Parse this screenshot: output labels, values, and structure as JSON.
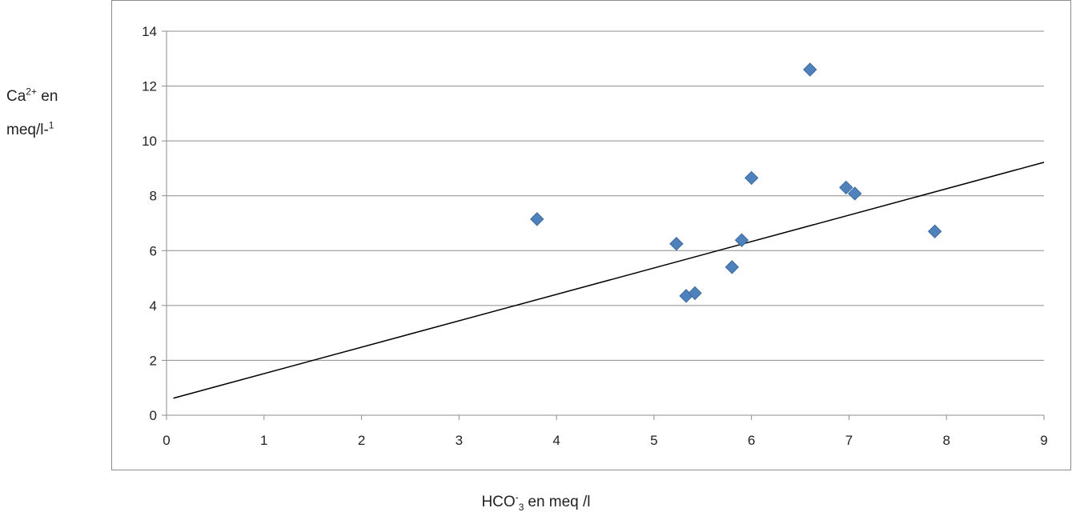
{
  "chart_data": {
    "type": "scatter",
    "xlabel": {
      "main": "HCO",
      "sup": "-",
      "sub": "3",
      "rest": "en meq /l"
    },
    "ylabel": {
      "line1_main": "Ca",
      "line1_sup": "2+",
      "line1_rest": " en",
      "line2_main": "meq/l-",
      "line2_sup": "1"
    },
    "xlim": [
      0,
      9
    ],
    "ylim": [
      0,
      14
    ],
    "xticks": [
      "0",
      "1",
      "2",
      "3",
      "4",
      "5",
      "6",
      "7",
      "8",
      "9"
    ],
    "yticks": [
      "0",
      "2",
      "4",
      "6",
      "8",
      "10",
      "12",
      "14"
    ],
    "grid": {
      "horizontal": true,
      "vertical": false
    },
    "series": [
      {
        "marker": "diamond",
        "color": "#4f81bd",
        "points": [
          {
            "x": 3.8,
            "y": 7.15
          },
          {
            "x": 5.23,
            "y": 6.25
          },
          {
            "x": 5.33,
            "y": 4.35
          },
          {
            "x": 5.42,
            "y": 4.45
          },
          {
            "x": 5.8,
            "y": 5.4
          },
          {
            "x": 5.9,
            "y": 6.38
          },
          {
            "x": 6.0,
            "y": 8.65
          },
          {
            "x": 6.6,
            "y": 12.6
          },
          {
            "x": 6.97,
            "y": 8.3
          },
          {
            "x": 7.06,
            "y": 8.08
          },
          {
            "x": 7.88,
            "y": 6.7
          }
        ]
      }
    ],
    "trendline": {
      "from": {
        "x": 0.07,
        "y": 0.62
      },
      "to": {
        "x": 9.0,
        "y": 9.22
      },
      "color": "#000000"
    }
  }
}
